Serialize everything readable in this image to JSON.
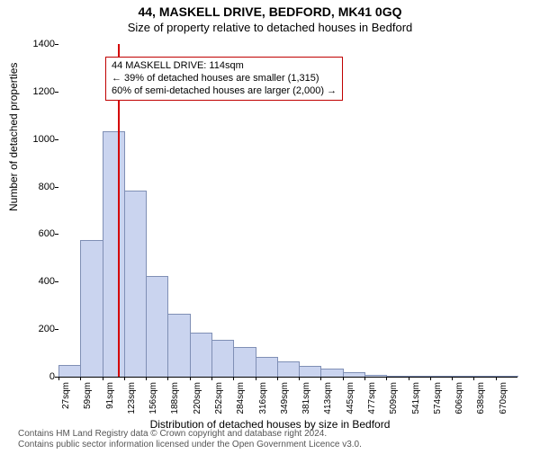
{
  "title": "44, MASKELL DRIVE, BEDFORD, MK41 0GQ",
  "subtitle": "Size of property relative to detached houses in Bedford",
  "chart": {
    "type": "histogram",
    "ylabel": "Number of detached properties",
    "xlabel": "Distribution of detached houses by size in Bedford",
    "ylim": [
      0,
      1400
    ],
    "ytick_step": 200,
    "bar_fill": "#cad4ef",
    "bar_stroke": "#7f8fb5",
    "background_color": "#ffffff",
    "refline_color": "#d40000",
    "refline_at_sqm": 114,
    "categories": [
      "27sqm",
      "59sqm",
      "91sqm",
      "123sqm",
      "156sqm",
      "188sqm",
      "220sqm",
      "252sqm",
      "284sqm",
      "316sqm",
      "349sqm",
      "381sqm",
      "413sqm",
      "445sqm",
      "477sqm",
      "509sqm",
      "541sqm",
      "574sqm",
      "606sqm",
      "638sqm",
      "670sqm"
    ],
    "bin_starts_sqm": [
      27,
      59,
      91,
      123,
      156,
      188,
      220,
      252,
      284,
      316,
      349,
      381,
      413,
      445,
      477,
      509,
      541,
      574,
      606,
      638,
      670
    ],
    "values": [
      45,
      570,
      1030,
      780,
      420,
      260,
      180,
      150,
      120,
      80,
      60,
      40,
      30,
      15,
      5,
      0,
      0,
      0,
      0,
      0,
      0
    ],
    "label_fontsize": 12,
    "tick_fontsize": 11
  },
  "annotation": {
    "line1": "44 MASKELL DRIVE: 114sqm",
    "line2": "← 39% of detached houses are smaller (1,315)",
    "line3": "60% of semi-detached houses are larger (2,000) →",
    "border_color": "#c00000"
  },
  "footer": {
    "line1": "Contains HM Land Registry data © Crown copyright and database right 2024.",
    "line2": "Contains public sector information licensed under the Open Government Licence v3.0."
  }
}
